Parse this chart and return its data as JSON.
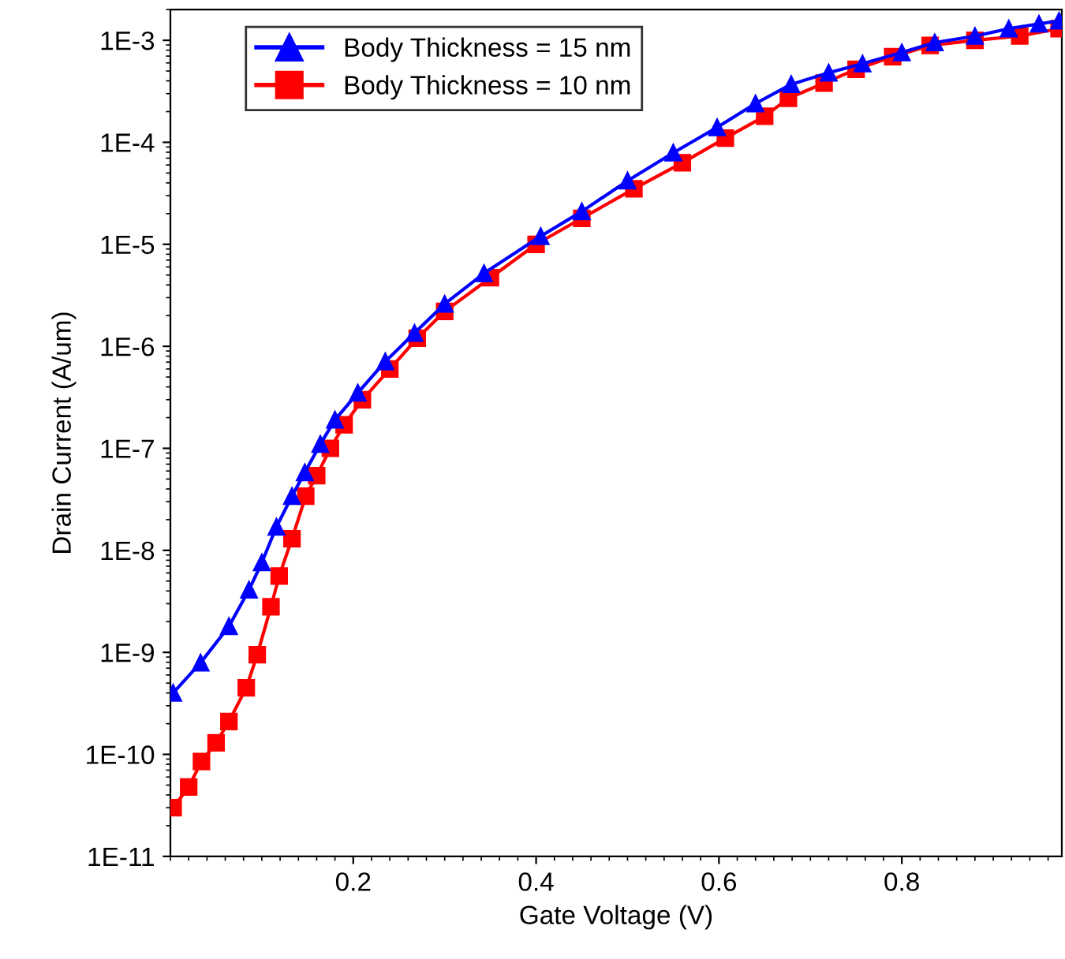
{
  "chart_data": {
    "type": "line",
    "xlabel": "Gate Voltage (V)",
    "ylabel": "Drain Current (A/um)",
    "log": "y",
    "grid": false,
    "legend": "top left",
    "line_style": "solid",
    "xlim": [
      0,
      0.975
    ],
    "xticks": [
      0.2,
      0.4,
      0.6,
      0.8
    ],
    "ylim": [
      1e-11,
      0.002
    ],
    "yticks": [
      {
        "value": 1e-11,
        "label": "1E-11"
      },
      {
        "value": 1e-10,
        "label": "1E-10"
      },
      {
        "value": 1e-09,
        "label": "1E-9"
      },
      {
        "value": 1e-08,
        "label": "1E-8"
      },
      {
        "value": 1e-07,
        "label": "1E-7"
      },
      {
        "value": 1e-06,
        "label": "1E-6"
      },
      {
        "value": 1e-05,
        "label": "1E-5"
      },
      {
        "value": 0.0001,
        "label": "1E-4"
      },
      {
        "value": 0.001,
        "label": "1E-3"
      }
    ],
    "series": [
      {
        "name": "Body Thickness = 15 nm",
        "color": "#0000ff",
        "marker": "triangle",
        "x": [
          0.003,
          0.033,
          0.064,
          0.086,
          0.1,
          0.116,
          0.133,
          0.147,
          0.164,
          0.18,
          0.205,
          0.235,
          0.267,
          0.3,
          0.343,
          0.405,
          0.45,
          0.5,
          0.55,
          0.598,
          0.64,
          0.679,
          0.72,
          0.757,
          0.8,
          0.836,
          0.88,
          0.917,
          0.95,
          0.972
        ],
        "values": [
          4e-10,
          7.9e-10,
          1.8e-09,
          4.1e-09,
          7.6e-09,
          1.7e-08,
          3.4e-08,
          5.8e-08,
          1.1e-07,
          1.9e-07,
          3.5e-07,
          7.1e-07,
          1.35e-06,
          2.6e-06,
          5.2e-06,
          1.2e-05,
          2.1e-05,
          4.2e-05,
          7.9e-05,
          0.00014,
          0.00024,
          0.00037,
          0.00048,
          0.00059,
          0.00076,
          0.00095,
          0.0011,
          0.0013,
          0.00145,
          0.00155
        ]
      },
      {
        "name": "Body Thickness = 10 nm",
        "color": "#ff0000",
        "marker": "square",
        "x": [
          0.003,
          0.02,
          0.034,
          0.05,
          0.064,
          0.083,
          0.095,
          0.11,
          0.119,
          0.133,
          0.148,
          0.16,
          0.175,
          0.19,
          0.21,
          0.24,
          0.27,
          0.3,
          0.35,
          0.4,
          0.45,
          0.507,
          0.56,
          0.607,
          0.65,
          0.676,
          0.715,
          0.75,
          0.79,
          0.831,
          0.88,
          0.929,
          0.972
        ],
        "values": [
          3e-11,
          4.8e-11,
          8.5e-11,
          1.3e-10,
          2.1e-10,
          4.5e-10,
          9.5e-10,
          2.8e-09,
          5.6e-09,
          1.3e-08,
          3.4e-08,
          5.4e-08,
          1e-07,
          1.7e-07,
          3e-07,
          6e-07,
          1.2e-06,
          2.2e-06,
          4.7e-06,
          1e-05,
          1.8e-05,
          3.5e-05,
          6.3e-05,
          0.00011,
          0.00018,
          0.00027,
          0.00038,
          0.00052,
          0.00069,
          0.00089,
          0.001,
          0.0011,
          0.0013
        ]
      }
    ]
  }
}
